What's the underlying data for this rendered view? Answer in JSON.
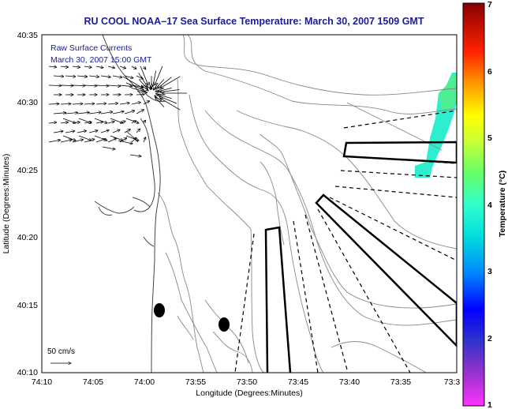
{
  "map": {
    "title": "RU COOL  NOAA–17  Sea Surface Temperature:  March 30, 2007 1509 GMT",
    "legend_line1": "Raw Surface Currents",
    "legend_line2": "March 30, 2007 15:00 GMT",
    "x_axis_label": "Longitude (Degrees:Minutes)",
    "y_axis_label": "Latitude (Degrees:Minutes)",
    "x_ticks": [
      "74:10",
      "74:05",
      "74:00",
      "73:55",
      "73:50",
      "73:45",
      "73:40",
      "73:35",
      "73:3"
    ],
    "y_ticks": [
      "40:35",
      "40:30",
      "40:25",
      "40:20",
      "40:15",
      "40:10"
    ],
    "scale_label": "50 cm/s",
    "title_color": "#1b1b9a",
    "legend_color": "#1b1b9a"
  },
  "colorbar": {
    "label": "Temperature (°C)",
    "ticks": [
      "7",
      "6",
      "5",
      "4",
      "3",
      "2",
      "1"
    ],
    "min": 1,
    "max": 7
  }
}
